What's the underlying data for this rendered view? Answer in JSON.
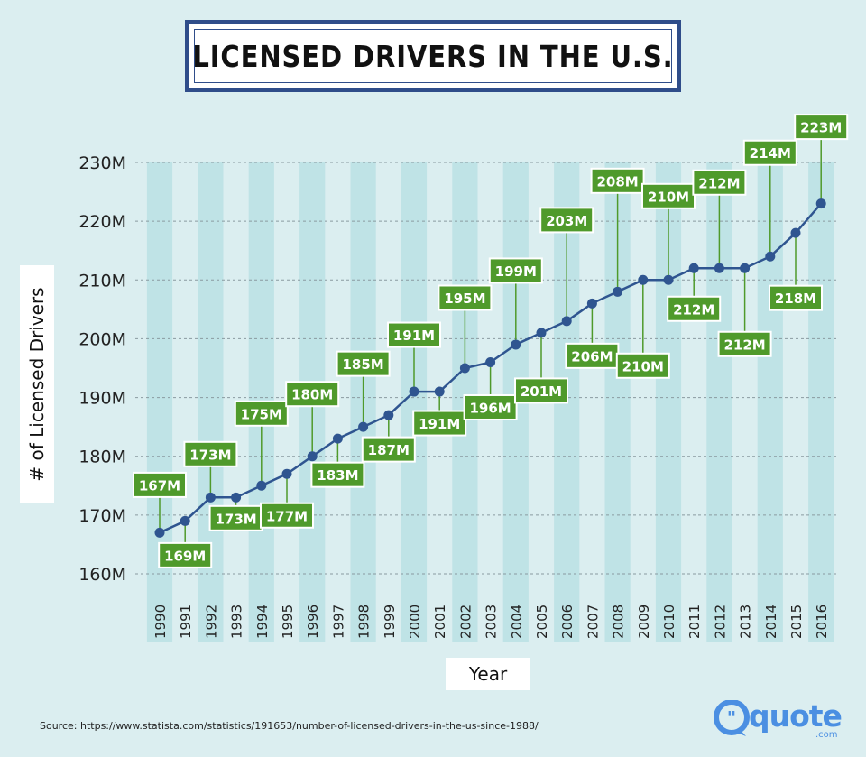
{
  "title": "LICENSED DRIVERS IN THE U.S.",
  "source": "Source: https://www.statista.com/statistics/191653/number-of-licensed-drivers-in-the-us-since-1988/",
  "logo": {
    "word": "quote",
    "suffix": ".com"
  },
  "colors": {
    "background": "#dbeef0",
    "stripe": "#bfe3e6",
    "line": "#2f5590",
    "label_box": "#4f9a2b",
    "label_border": "#ffffff",
    "title_border": "#2f4d8a"
  },
  "chart_data": {
    "type": "line",
    "xlabel": "Year",
    "ylabel": "# of Licensed Drivers",
    "ylim": [
      160,
      230
    ],
    "yticks": [
      160,
      170,
      180,
      190,
      200,
      210,
      220,
      230
    ],
    "ytick_labels": [
      "160M",
      "170M",
      "180M",
      "190M",
      "200M",
      "210M",
      "220M",
      "230M"
    ],
    "grid": true,
    "x": [
      "1990",
      "1991",
      "1992",
      "1993",
      "1994",
      "1995",
      "1996",
      "1997",
      "1998",
      "1999",
      "2000",
      "2001",
      "2002",
      "2003",
      "2004",
      "2005",
      "2006",
      "2007",
      "2008",
      "2009",
      "2010",
      "2011",
      "2012",
      "2013",
      "2014",
      "2015",
      "2016"
    ],
    "values": [
      167,
      169,
      173,
      173,
      175,
      177,
      180,
      183,
      185,
      187,
      191,
      191,
      195,
      196,
      199,
      201,
      203,
      206,
      208,
      210,
      210,
      212,
      212,
      212,
      214,
      218,
      223
    ],
    "data_labels": [
      "167M",
      "169M",
      "173M",
      "173M",
      "175M",
      "177M",
      "180M",
      "183M",
      "185M",
      "187M",
      "191M",
      "191M",
      "195M",
      "196M",
      "199M",
      "201M",
      "203M",
      "206M",
      "208M",
      "210M",
      "210M",
      "212M",
      "212M",
      "212M",
      "214M",
      "218M",
      "223M"
    ]
  }
}
